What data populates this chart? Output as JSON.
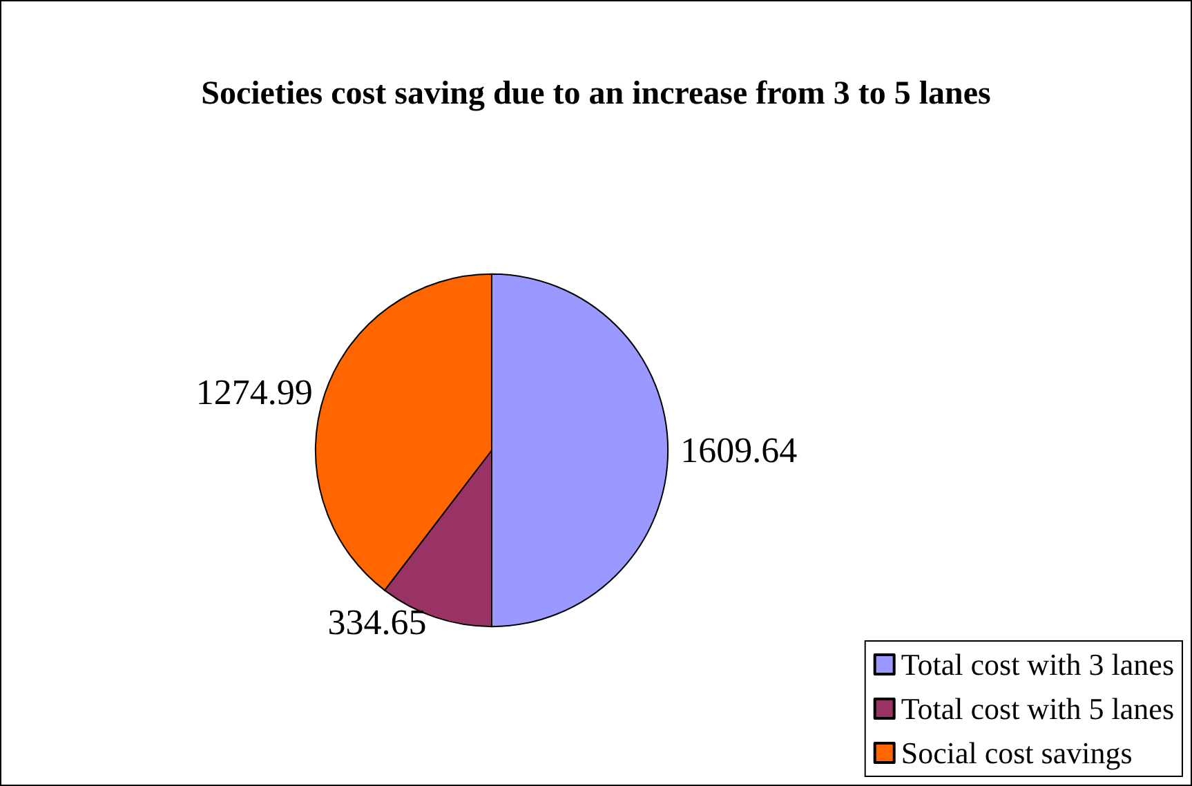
{
  "chart_data": {
    "type": "pie",
    "title": "Societies cost saving due to an increase from 3 to 5 lanes",
    "categories": [
      "Total cost with 3 lanes",
      "Total cost with 5 lanes",
      "Social cost savings"
    ],
    "values": [
      1609.64,
      334.65,
      1274.99
    ],
    "colors": [
      "#9999ff",
      "#993366",
      "#ff6600"
    ],
    "data_labels": true,
    "legend": "bottom right"
  }
}
